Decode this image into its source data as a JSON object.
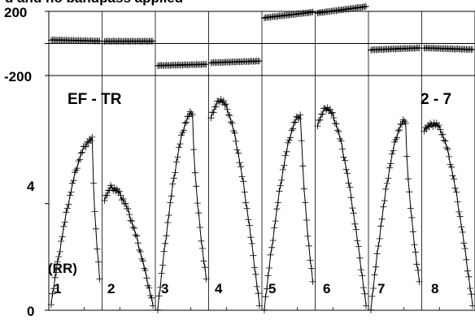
{
  "title": "d and no bandpass applied",
  "chart_data": {
    "type": "line",
    "baseline_label": "EF - TR",
    "spectral_window": "2 - 7",
    "polarization": "(RR)",
    "phase_panel": {
      "yticks": [
        "200",
        "-200"
      ],
      "ylim": [
        -200,
        200
      ],
      "channels": [
        {
          "label": "1",
          "start": 22,
          "end": 15
        },
        {
          "label": "2",
          "start": 14,
          "end": 14
        },
        {
          "label": "3",
          "start": -138,
          "end": -130
        },
        {
          "label": "4",
          "start": -120,
          "end": -110
        },
        {
          "label": "5",
          "start": 160,
          "end": 195
        },
        {
          "label": "6",
          "start": 190,
          "end": 230
        },
        {
          "label": "7",
          "start": -40,
          "end": -28
        },
        {
          "label": "8",
          "start": -28,
          "end": -38
        }
      ]
    },
    "amplitude_panel": {
      "yticks": [
        "4",
        "0"
      ],
      "ylim": [
        0,
        8.8
      ],
      "channels": [
        {
          "label": "1",
          "peak": 6.4,
          "peak_pos": 0.85,
          "start": 0.3,
          "edge": 1.2,
          "end": 0.6
        },
        {
          "label": "2",
          "peak": 4.6,
          "peak_pos": 0.13,
          "start": 4.2,
          "edge": 1.0,
          "end": 0.2
        },
        {
          "label": "3",
          "peak": 7.4,
          "peak_pos": 0.72,
          "start": 0.1,
          "edge": 1.2,
          "end": 0.5
        },
        {
          "label": "4",
          "peak": 7.9,
          "peak_pos": 0.17,
          "start": 7.3,
          "edge": 1.0,
          "end": 0.2
        },
        {
          "label": "5",
          "peak": 7.3,
          "peak_pos": 0.76,
          "start": 0.1,
          "edge": 1.1,
          "end": 0.5
        },
        {
          "label": "6",
          "peak": 7.6,
          "peak_pos": 0.16,
          "start": 7.0,
          "edge": 1.0,
          "end": 0.2
        },
        {
          "label": "7",
          "peak": 7.1,
          "peak_pos": 0.72,
          "start": 0.1,
          "edge": 1.1,
          "end": 0.6
        },
        {
          "label": "8",
          "peak": 7.0,
          "peak_pos": 0.2,
          "start": 6.8,
          "edge": 1.2,
          "end": 0.2
        }
      ]
    }
  }
}
